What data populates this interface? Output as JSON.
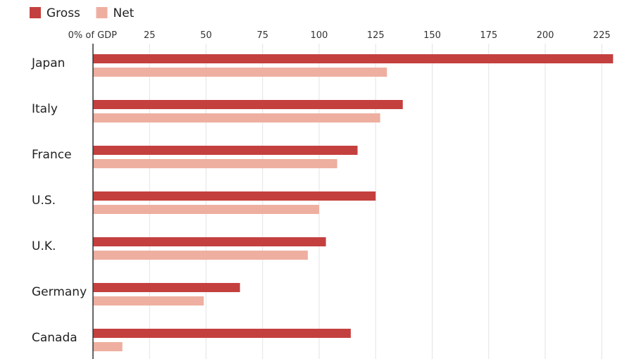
{
  "chart_data": {
    "type": "bar",
    "orientation": "horizontal",
    "categories": [
      "Japan",
      "Italy",
      "France",
      "U.S.",
      "U.K.",
      "Germany",
      "Canada"
    ],
    "series": [
      {
        "name": "Gross",
        "color": "#c4403f",
        "values": [
          230,
          137,
          117,
          125,
          103,
          65,
          114
        ]
      },
      {
        "name": "Net",
        "color": "#eeafa0",
        "values": [
          130,
          127,
          108,
          100,
          95,
          49,
          13
        ]
      }
    ],
    "xlim": [
      0,
      230
    ],
    "ticks": [
      0,
      25,
      50,
      75,
      100,
      125,
      150,
      175,
      200,
      225
    ],
    "tick_labels": [
      "0% of GDP",
      "25",
      "50",
      "75",
      "100",
      "125",
      "150",
      "175",
      "200",
      "225"
    ],
    "grid": true,
    "legend_position": "top-left"
  }
}
